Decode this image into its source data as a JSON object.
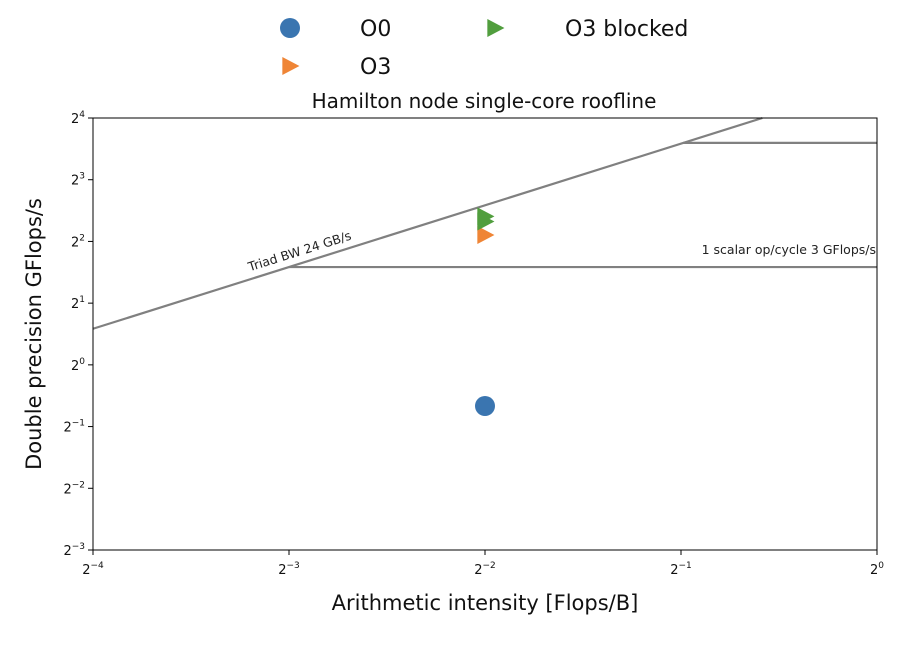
{
  "chart_data": {
    "type": "scatter",
    "title": "Hamilton node single-core roofline",
    "xlabel": "Arithmetic intensity [Flops/B]",
    "ylabel": "Double precision GFlops/s",
    "xscale": "log2",
    "yscale": "log2",
    "xlim_log2": [
      -4,
      0
    ],
    "ylim_log2": [
      -3,
      4
    ],
    "x_ticks": [
      {
        "base": "2",
        "exp": "−4",
        "log2": -4
      },
      {
        "base": "2",
        "exp": "−3",
        "log2": -3
      },
      {
        "base": "2",
        "exp": "−2",
        "log2": -2
      },
      {
        "base": "2",
        "exp": "−1",
        "log2": -1
      },
      {
        "base": "2",
        "exp": "0",
        "log2": 0
      }
    ],
    "y_ticks": [
      {
        "base": "2",
        "exp": "4",
        "log2": 4
      },
      {
        "base": "2",
        "exp": "3",
        "log2": 3
      },
      {
        "base": "2",
        "exp": "2",
        "log2": 2
      },
      {
        "base": "2",
        "exp": "1",
        "log2": 1
      },
      {
        "base": "2",
        "exp": "0",
        "log2": 0
      },
      {
        "base": "2",
        "exp": "−1",
        "log2": -1
      },
      {
        "base": "2",
        "exp": "−2",
        "log2": -2
      },
      {
        "base": "2",
        "exp": "−3",
        "log2": -3
      }
    ],
    "grid": false,
    "legend_position": "top-center",
    "series": [
      {
        "name": "O0",
        "marker": "circle",
        "color": "#3a75b0",
        "points": [
          {
            "x": 0.25,
            "y": 0.63
          }
        ]
      },
      {
        "name": "O3",
        "marker": "triangle-right",
        "color": "#ef8536",
        "points": [
          {
            "x": 0.25,
            "y": 4.3
          }
        ]
      },
      {
        "name": "O3 blocked",
        "marker": "triangle-right",
        "color": "#519e3e",
        "points": [
          {
            "x": 0.25,
            "y": 5.0
          },
          {
            "x": 0.25,
            "y": 5.3
          }
        ]
      }
    ],
    "roofs": [
      {
        "type": "bandwidth",
        "label": "Triad BW 24 GB/s",
        "bandwidth": 24
      },
      {
        "type": "compute",
        "label": "1 scalar op/cycle 3 GFlops/s",
        "peak": 3
      },
      {
        "type": "compute",
        "label": "",
        "peak": 12.1
      }
    ],
    "roof_color": "#808080"
  }
}
